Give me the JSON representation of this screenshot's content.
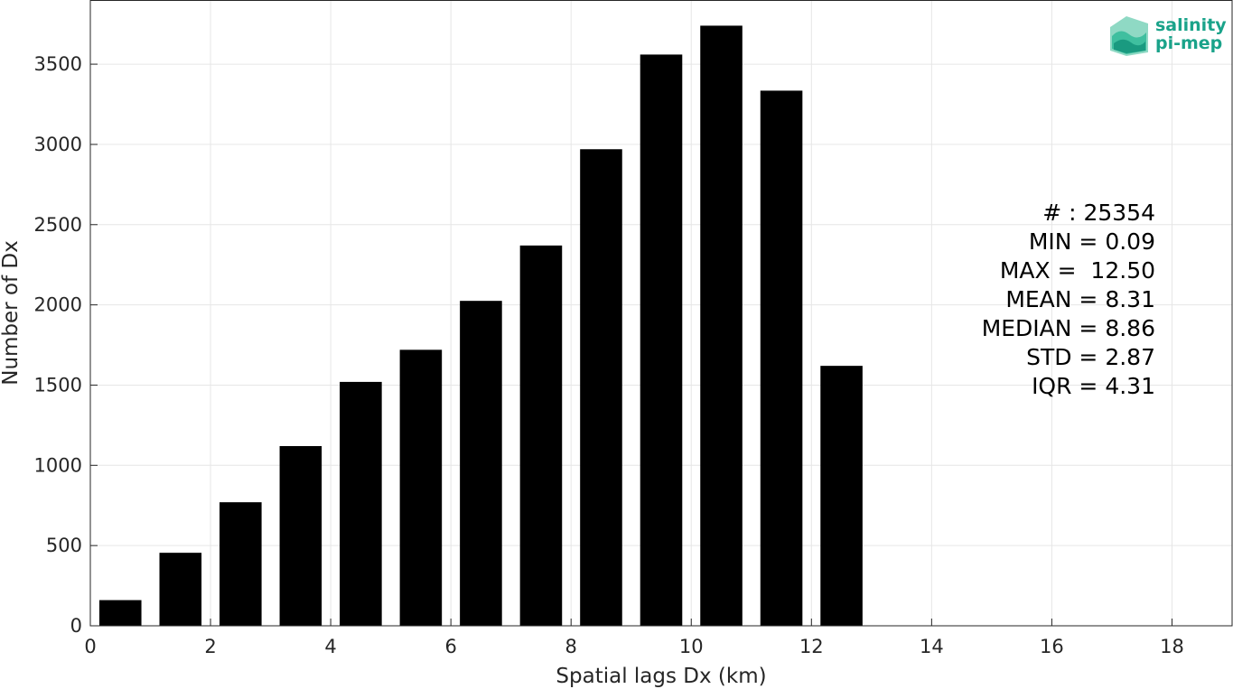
{
  "chart_data": {
    "type": "bar",
    "x": [
      0.5,
      1.5,
      2.5,
      3.5,
      4.5,
      5.5,
      6.5,
      7.5,
      8.5,
      9.5,
      10.5,
      11.5,
      12.5
    ],
    "values": [
      160,
      455,
      770,
      1120,
      1520,
      1720,
      2025,
      2370,
      2970,
      3560,
      3740,
      3335,
      1620
    ],
    "xlabel": "Spatial lags Dx (km)",
    "ylabel": "Number of Dx",
    "xlim": [
      0,
      19
    ],
    "ylim": [
      0,
      3900
    ],
    "xticks": [
      0,
      2,
      4,
      6,
      8,
      10,
      12,
      14,
      16,
      18
    ],
    "yticks": [
      0,
      500,
      1000,
      1500,
      2000,
      2500,
      3000,
      3500
    ],
    "grid": true,
    "bar_color": "#000000"
  },
  "stats": [
    "# : 25354",
    "MIN = 0.09",
    "MAX =  12.50",
    "MEAN = 8.31",
    "MEDIAN = 8.86",
    "STD = 2.87",
    "IQR = 4.31"
  ],
  "logo": {
    "line1": "salinity",
    "line2": "pi-mep",
    "color": "#1aa38a"
  }
}
